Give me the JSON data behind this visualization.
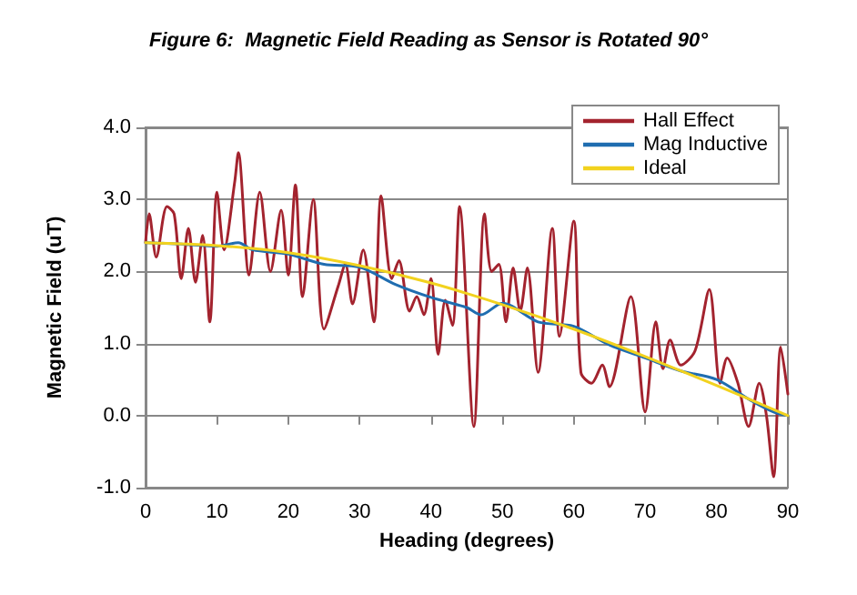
{
  "chart_data": {
    "type": "line",
    "title": "Figure 6:  Magnetic Field Reading as Sensor is Rotated 90°",
    "xlabel": "Heading (degrees)",
    "ylabel": "Magnetic Field (uT)",
    "xlim": [
      0,
      90
    ],
    "xticks": [
      0,
      10,
      20,
      30,
      40,
      50,
      60,
      70,
      80,
      90
    ],
    "ylim": [
      -1,
      4
    ],
    "yticks": [
      {
        "value": -1,
        "label": "-1.0"
      },
      {
        "value": 0,
        "label": "0.0"
      },
      {
        "value": 1,
        "label": "1.0"
      },
      {
        "value": 2,
        "label": "2.0"
      },
      {
        "value": 3,
        "label": "3.0"
      },
      {
        "value": 4,
        "label": "4.0"
      }
    ],
    "grid": "y",
    "legend": "top right",
    "marker": "none",
    "line_style": "solid",
    "series": [
      {
        "name": "Hall Effect",
        "color": "#a3232e",
        "x": [
          0,
          0.5,
          1.5,
          3,
          4,
          5,
          6,
          7,
          8,
          9,
          10,
          11,
          12.5,
          13,
          14.5,
          16,
          17.5,
          19,
          20,
          21,
          22,
          23.5,
          25,
          27,
          28,
          29,
          30.5,
          32,
          33,
          34.5,
          35.5,
          37,
          38,
          39,
          40,
          41,
          42,
          43,
          44,
          46,
          47.5,
          48.5,
          49.5,
          50.5,
          51.5,
          52.5,
          53.5,
          55,
          57,
          58,
          60,
          61,
          62.5,
          64,
          65,
          68,
          70,
          71.5,
          72.5,
          73.5,
          75,
          77,
          79,
          80.5,
          81.5,
          83,
          84.5,
          86,
          87,
          88,
          89,
          90
        ],
        "values": [
          2.4,
          2.8,
          2.2,
          2.9,
          2.8,
          1.9,
          2.6,
          1.85,
          2.5,
          1.3,
          3.1,
          2.3,
          3.25,
          3.65,
          1.95,
          3.1,
          2.0,
          2.85,
          1.95,
          3.2,
          1.65,
          3.0,
          1.2,
          1.8,
          2.1,
          1.55,
          2.3,
          1.3,
          3.05,
          1.9,
          2.15,
          1.45,
          1.65,
          1.4,
          1.9,
          0.85,
          1.6,
          1.25,
          2.9,
          -0.15,
          2.8,
          2.0,
          2.1,
          1.3,
          2.05,
          1.45,
          2.05,
          0.6,
          2.6,
          1.1,
          2.7,
          0.6,
          0.45,
          0.7,
          0.4,
          1.65,
          0.05,
          1.3,
          0.65,
          1.05,
          0.7,
          0.9,
          1.75,
          0.45,
          0.8,
          0.45,
          -0.15,
          0.45,
          0,
          -0.85,
          0.95,
          0.3
        ]
      },
      {
        "name": "Mag Inductive",
        "color": "#1f6db0",
        "x": [
          0,
          5,
          10,
          13,
          15,
          20,
          25,
          30,
          35,
          40,
          45,
          47,
          50,
          55,
          60,
          65,
          70,
          75,
          80,
          85,
          88,
          90
        ],
        "values": [
          2.4,
          2.38,
          2.35,
          2.4,
          2.3,
          2.24,
          2.1,
          2.06,
          1.82,
          1.64,
          1.5,
          1.4,
          1.56,
          1.3,
          1.24,
          0.98,
          0.8,
          0.62,
          0.5,
          0.2,
          0.05,
          0
        ]
      },
      {
        "name": "Ideal",
        "color": "#f2d21e",
        "x": [
          0,
          10,
          20,
          30,
          40,
          50,
          60,
          70,
          80,
          90
        ],
        "values": [
          2.4,
          2.36,
          2.26,
          2.08,
          1.84,
          1.54,
          1.2,
          0.82,
          0.42,
          0
        ]
      }
    ]
  }
}
